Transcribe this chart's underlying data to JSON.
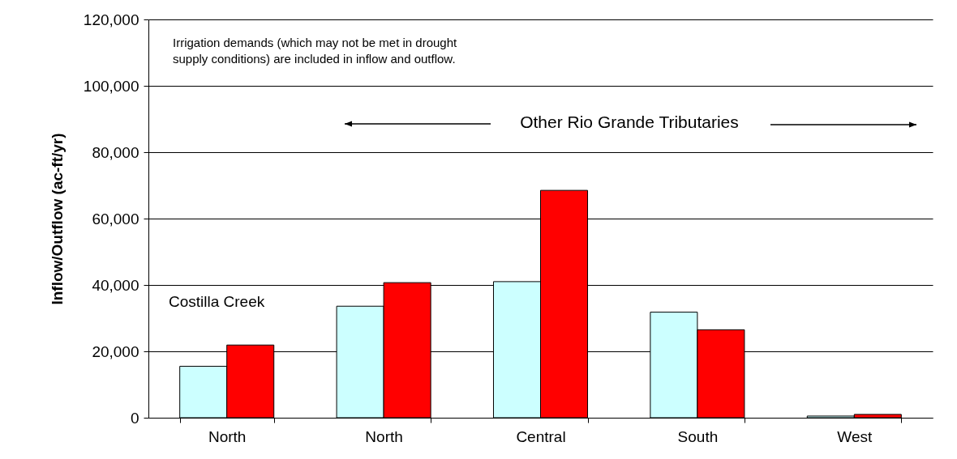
{
  "chart_data": {
    "type": "bar",
    "ylabel": "Inflow/Outflow (ac-ft/yr)",
    "categories": [
      "North",
      "North",
      "Central",
      "South",
      "West"
    ],
    "series": [
      {
        "color": "#ccffff",
        "values": [
          15500,
          33600,
          41000,
          31800,
          500
        ]
      },
      {
        "color": "#ff0000",
        "values": [
          21900,
          40700,
          68500,
          26500,
          1000
        ]
      }
    ],
    "ylim": [
      0,
      120000
    ],
    "yticks": [
      {
        "value": 0,
        "label": "0"
      },
      {
        "value": 20000,
        "label": "20,000"
      },
      {
        "value": 40000,
        "label": "40,000"
      },
      {
        "value": 60000,
        "label": "60,000"
      },
      {
        "value": 80000,
        "label": "80,000"
      },
      {
        "value": 100000,
        "label": "100,000"
      },
      {
        "value": 120000,
        "label": "120,000"
      }
    ],
    "grid": "y",
    "legend": false,
    "annotations": [
      "Irrigation demands (which may not be met in drought\nsupply conditions) are included in inflow and outflow.",
      "Other Rio Grande Tributaries",
      "Costilla Creek"
    ]
  }
}
